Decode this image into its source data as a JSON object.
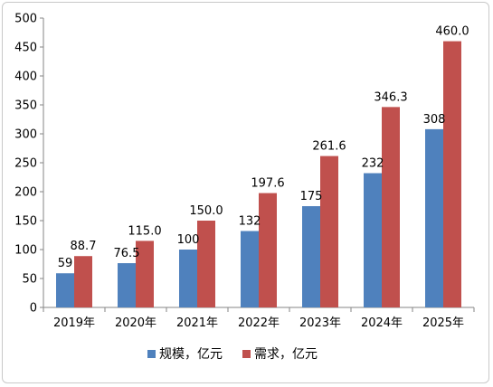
{
  "chart_data": {
    "type": "bar",
    "categories": [
      "2019年",
      "2020年",
      "2021年",
      "2022年",
      "2023年",
      "2024年",
      "2025年"
    ],
    "series": [
      {
        "name": "规模，亿元",
        "values": [
          59,
          76.5,
          100,
          132,
          175,
          232,
          308
        ],
        "labels": [
          "59",
          "76.5",
          "100",
          "132",
          "175",
          "232",
          "308"
        ],
        "color": "#4f81bd"
      },
      {
        "name": "需求，亿元",
        "values": [
          88.7,
          115.0,
          150.0,
          197.6,
          261.6,
          346.3,
          460.0
        ],
        "labels": [
          "88.7",
          "115.0",
          "150.0",
          "197.6",
          "261.6",
          "346.3",
          "460.0"
        ],
        "color": "#c0504d"
      }
    ],
    "y_ticks": [
      "0",
      "50",
      "100",
      "150",
      "200",
      "250",
      "300",
      "350",
      "400",
      "450",
      "500"
    ],
    "ylim": [
      0,
      500
    ],
    "title": "",
    "xlabel": "",
    "ylabel": "",
    "grid": false,
    "legend_position": "bottom"
  }
}
